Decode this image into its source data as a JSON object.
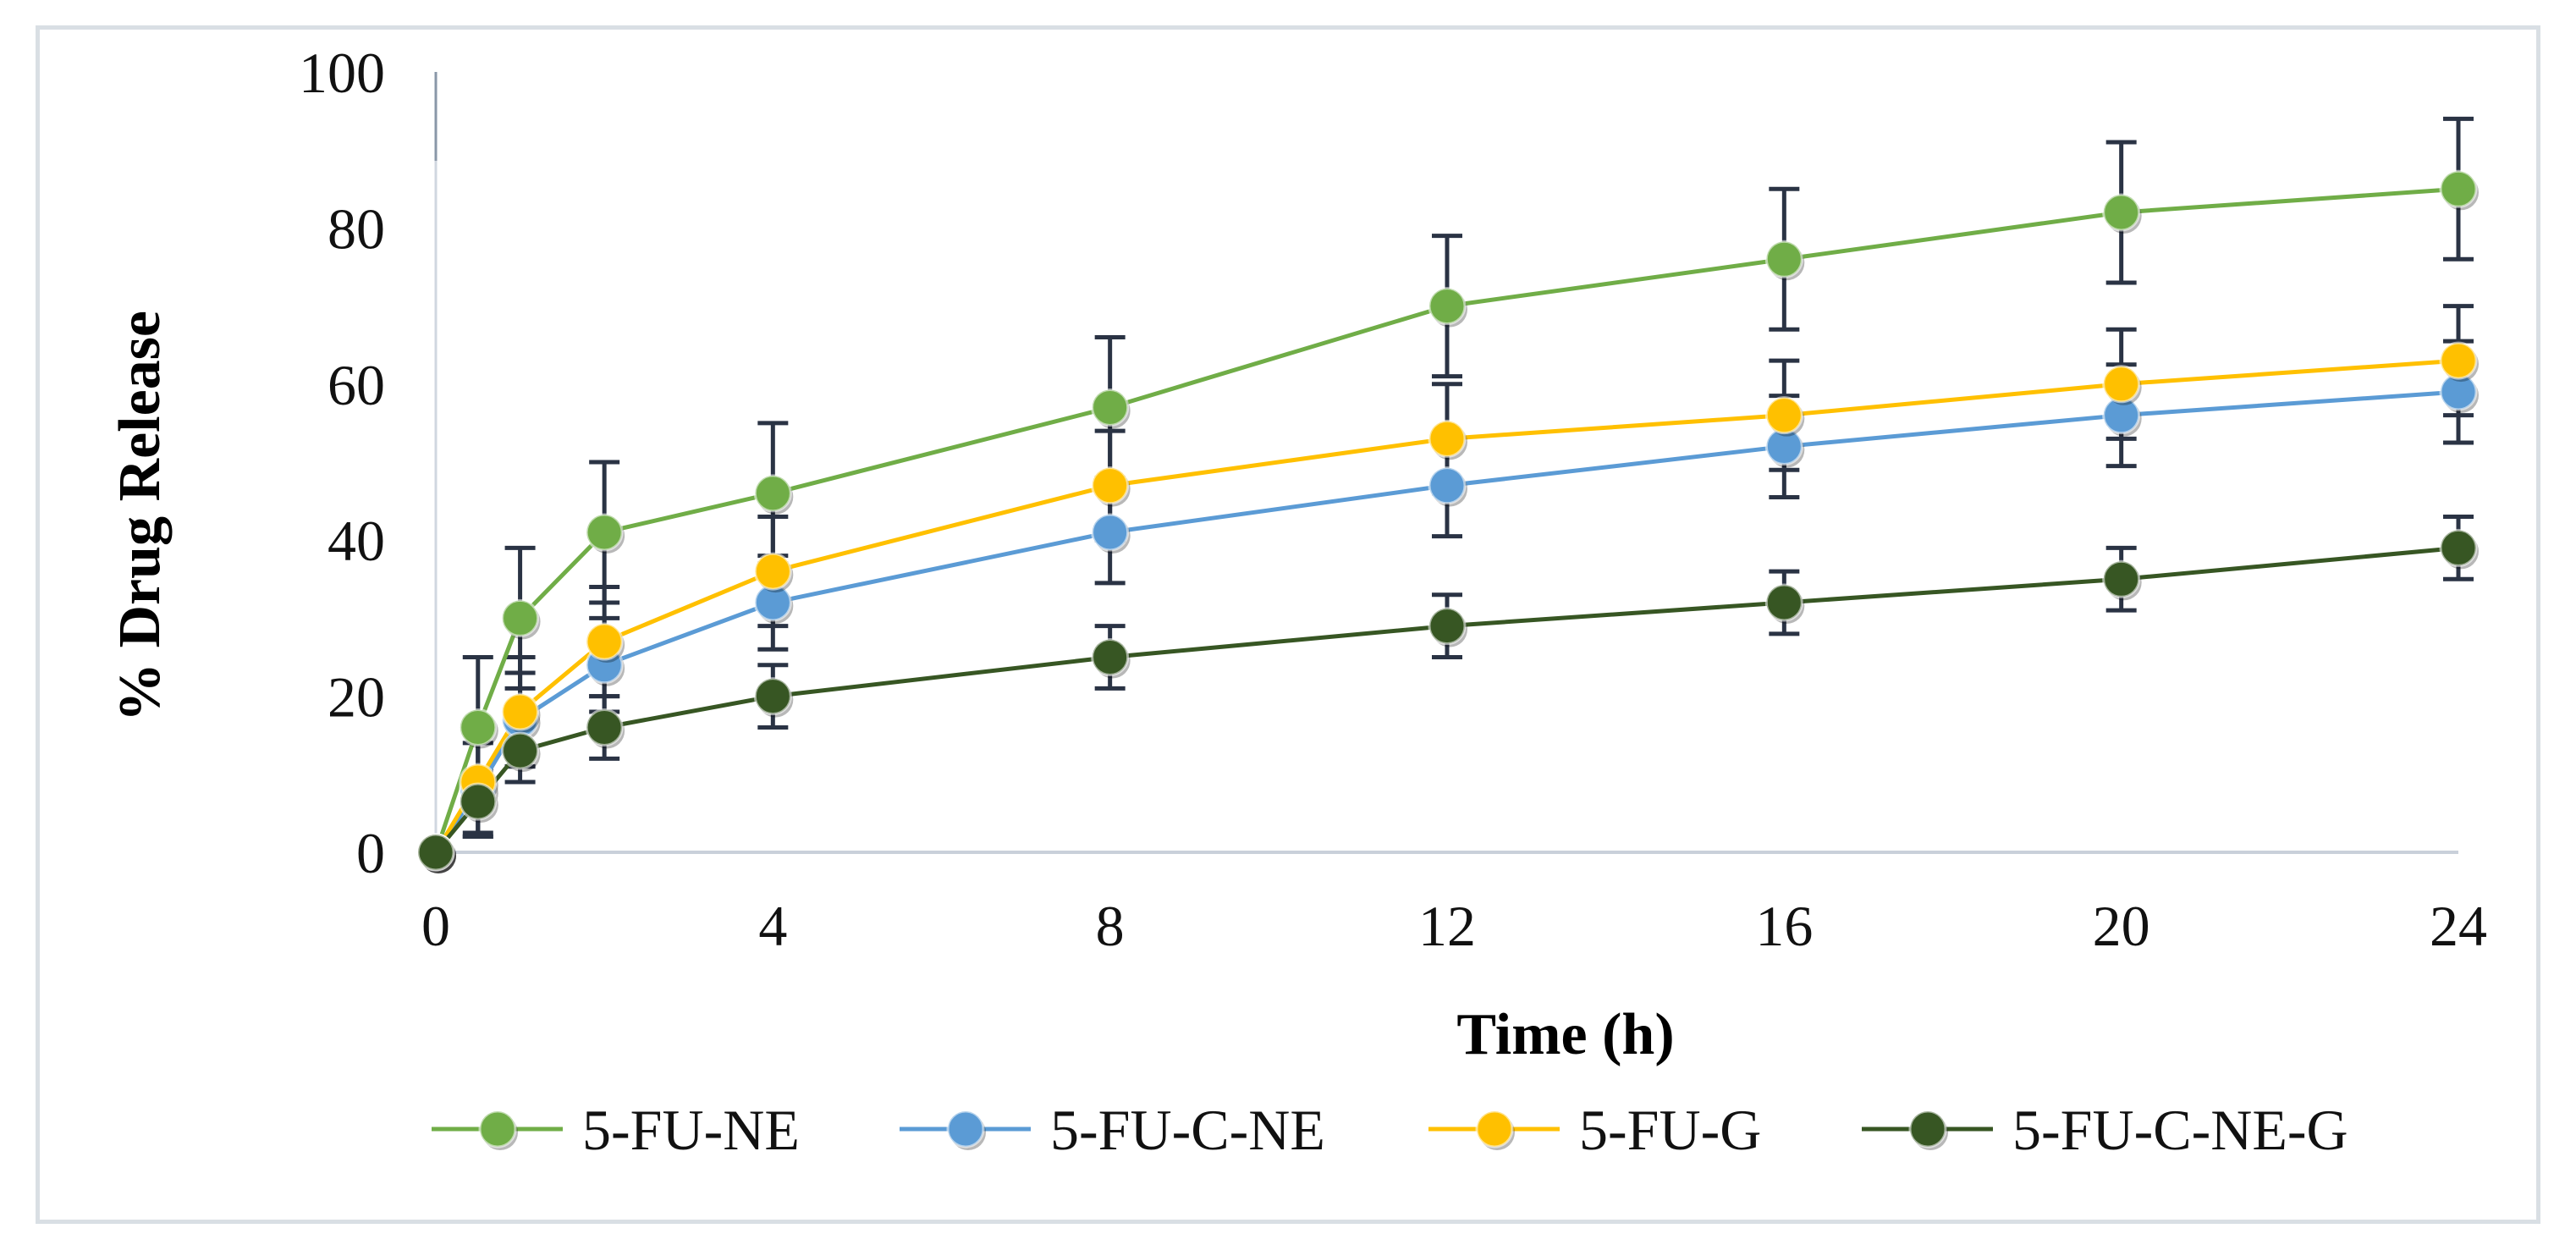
{
  "chart_data": {
    "type": "line",
    "title": "",
    "xlabel": "Time (h)",
    "ylabel": "% Drug Release",
    "x": [
      0,
      0.5,
      1,
      2,
      4,
      8,
      12,
      16,
      20,
      24
    ],
    "xticks": [
      0,
      4,
      8,
      12,
      16,
      20,
      24
    ],
    "xlim": [
      0,
      24
    ],
    "ylim": [
      0,
      100
    ],
    "yticks": [
      0,
      20,
      40,
      60,
      80,
      100
    ],
    "grid": false,
    "legend_position": "bottom",
    "series": [
      {
        "name": "5-FU-NE",
        "color": "#70ad47",
        "values": [
          0,
          16,
          30,
          41,
          46,
          57,
          70,
          76,
          82,
          85
        ],
        "error": [
          0,
          9,
          9,
          9,
          9,
          9,
          9,
          9,
          9,
          9
        ]
      },
      {
        "name": "5-FU-C-NE",
        "color": "#5b9bd5",
        "values": [
          0,
          8,
          17,
          24,
          32,
          41,
          47,
          52,
          56,
          59
        ],
        "error": [
          0,
          6,
          6,
          6,
          6,
          6.5,
          6.5,
          6.5,
          6.5,
          6.5
        ]
      },
      {
        "name": "5-FU-G",
        "color": "#ffc000",
        "values": [
          0,
          9,
          18,
          27,
          36,
          47,
          53,
          56,
          60,
          63
        ],
        "error": [
          0,
          7,
          7,
          7,
          7,
          7,
          7,
          7,
          7,
          7
        ]
      },
      {
        "name": "5-FU-C-NE-G",
        "color": "#375623",
        "values": [
          0,
          6.5,
          13,
          16,
          20,
          25,
          29,
          32,
          35,
          39
        ],
        "error": [
          0,
          4,
          4,
          4,
          4,
          4,
          4,
          4,
          4,
          4
        ]
      }
    ]
  }
}
